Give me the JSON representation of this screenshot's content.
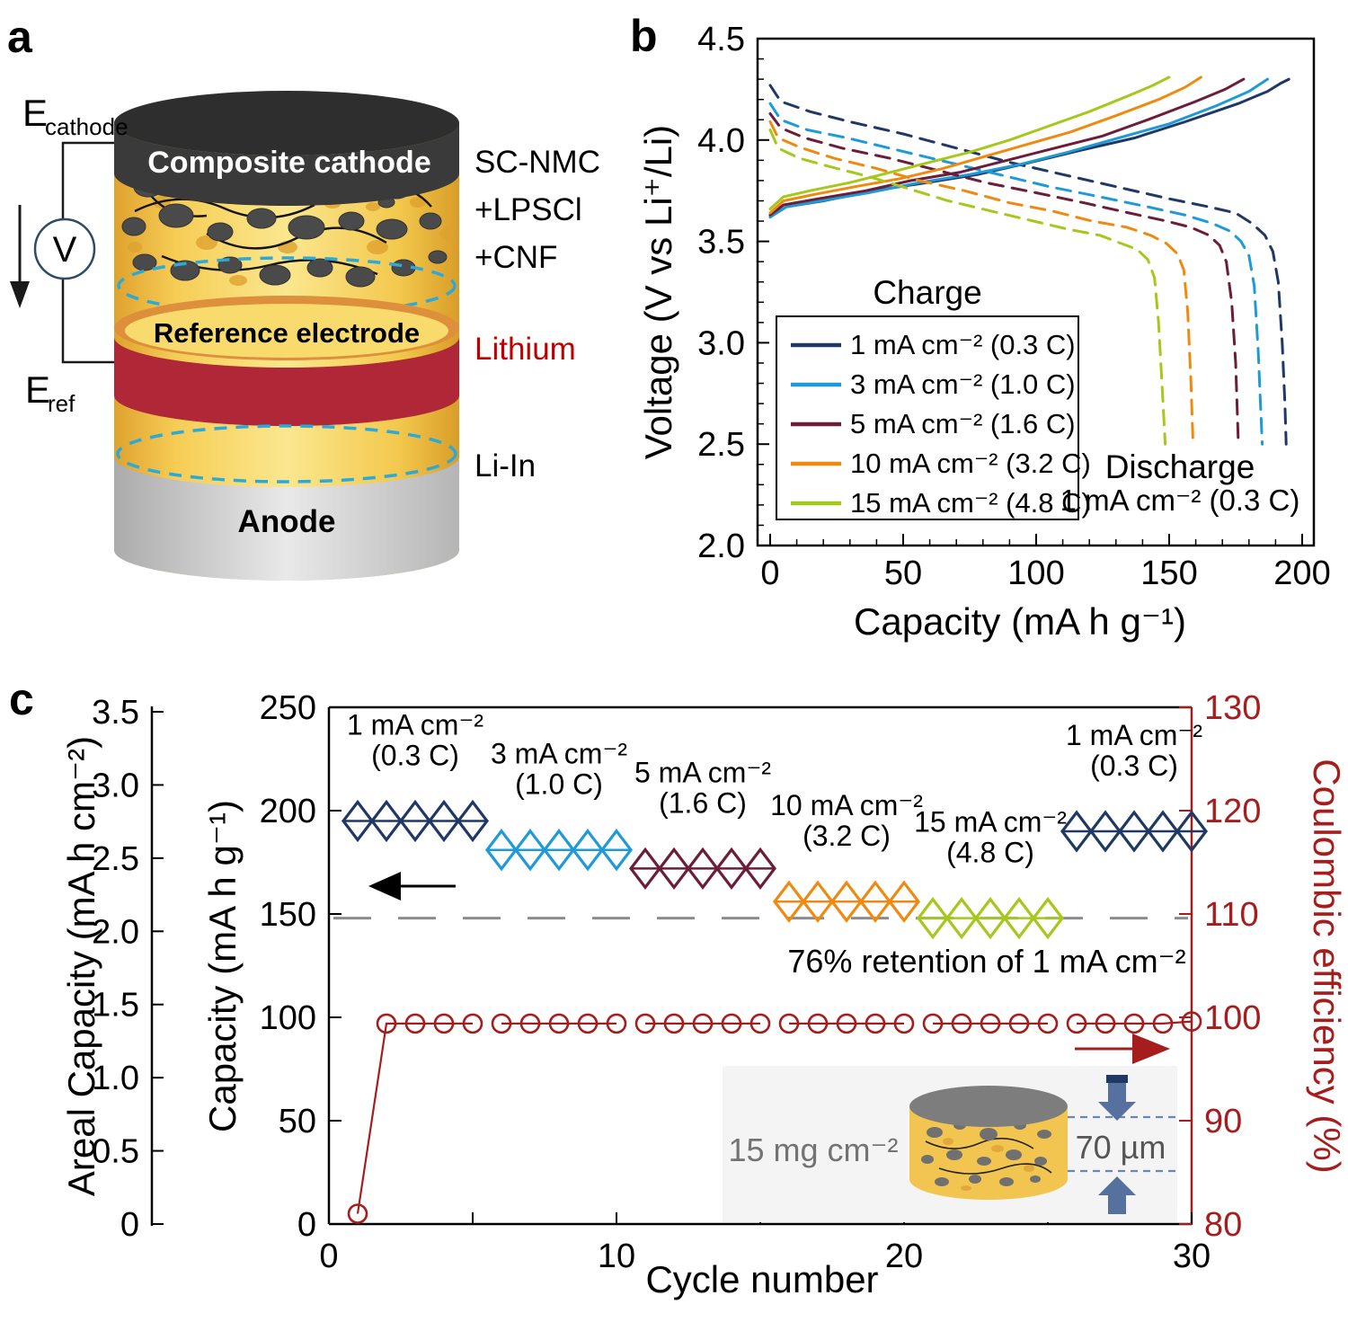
{
  "panels": {
    "a": "a",
    "b": "b",
    "c": "c"
  },
  "panel_a": {
    "voltmeter_label": "V",
    "e_symbol": "E",
    "e_cathode_sub": "cathode",
    "e_ref_sub": "ref",
    "cylinder": {
      "top_label": "Composite cathode",
      "middle_label": "Reference electrode",
      "bottom_label": "Anode"
    },
    "side_labels": {
      "cathode_line1": "SC-NMC",
      "cathode_line2": "+LPSCl",
      "cathode_line3": "+CNF",
      "reference": "Lithium",
      "anode": "Li-In"
    }
  },
  "chart_data": [
    {
      "id": "b",
      "type": "line",
      "xlabel": "Capacity (mA h g⁻¹)",
      "ylabel": "Voltage (V vs Li⁺/Li)",
      "xlim": [
        0,
        204
      ],
      "ylim": [
        2.0,
        4.5
      ],
      "xticks": [
        0,
        50,
        100,
        150,
        200
      ],
      "yticks": [
        2.0,
        2.5,
        3.0,
        3.5,
        4.0,
        4.5
      ],
      "grid": false,
      "legend_title": "Charge",
      "legend_position": "lower-left",
      "annotation_line1": "Discharge",
      "annotation_line2": "1 mA cm⁻² (0.3 C)",
      "series": [
        {
          "name": "1 mA cm⁻² (0.3 C)",
          "color": "#1f3864",
          "charge": [
            [
              0,
              3.62
            ],
            [
              6,
              3.67
            ],
            [
              20,
              3.7
            ],
            [
              39,
              3.75
            ],
            [
              59,
              3.79
            ],
            [
              78,
              3.83
            ],
            [
              98,
              3.89
            ],
            [
              117,
              3.95
            ],
            [
              137,
              4.01
            ],
            [
              156,
              4.09
            ],
            [
              176,
              4.18
            ],
            [
              187,
              4.24
            ],
            [
              192,
              4.28
            ],
            [
              195,
              4.3
            ]
          ],
          "discharge": [
            [
              0,
              4.27
            ],
            [
              4,
              4.19
            ],
            [
              15,
              4.14
            ],
            [
              30,
              4.09
            ],
            [
              50,
              4.03
            ],
            [
              70,
              3.96
            ],
            [
              90,
              3.89
            ],
            [
              110,
              3.83
            ],
            [
              130,
              3.77
            ],
            [
              150,
              3.71
            ],
            [
              165,
              3.67
            ],
            [
              175,
              3.64
            ],
            [
              181,
              3.59
            ],
            [
              186,
              3.53
            ],
            [
              189,
              3.45
            ],
            [
              191,
              3.3
            ],
            [
              192.5,
              3.0
            ],
            [
              193.5,
              2.7
            ],
            [
              194,
              2.5
            ]
          ]
        },
        {
          "name": "3 mA cm⁻² (1.0 C)",
          "color": "#1e9bd7",
          "charge": [
            [
              0,
              3.62
            ],
            [
              6,
              3.67
            ],
            [
              19,
              3.7
            ],
            [
              37,
              3.74
            ],
            [
              56,
              3.79
            ],
            [
              75,
              3.83
            ],
            [
              94,
              3.88
            ],
            [
              112,
              3.94
            ],
            [
              131,
              4.01
            ],
            [
              150,
              4.08
            ],
            [
              168,
              4.17
            ],
            [
              180,
              4.24
            ],
            [
              187,
              4.3
            ]
          ],
          "discharge": [
            [
              0,
              4.18
            ],
            [
              4,
              4.1
            ],
            [
              14,
              4.05
            ],
            [
              29,
              4.01
            ],
            [
              48,
              3.95
            ],
            [
              67,
              3.89
            ],
            [
              86,
              3.83
            ],
            [
              105,
              3.77
            ],
            [
              124,
              3.72
            ],
            [
              142,
              3.67
            ],
            [
              156,
              3.63
            ],
            [
              166,
              3.59
            ],
            [
              173,
              3.55
            ],
            [
              177,
              3.5
            ],
            [
              180,
              3.43
            ],
            [
              182,
              3.28
            ],
            [
              183.5,
              2.95
            ],
            [
              184.5,
              2.65
            ],
            [
              185,
              2.5
            ]
          ]
        },
        {
          "name": "5 mA cm⁻² (1.6 C)",
          "color": "#6b1d39",
          "charge": [
            [
              0,
              3.63
            ],
            [
              5,
              3.68
            ],
            [
              18,
              3.71
            ],
            [
              36,
              3.75
            ],
            [
              53,
              3.8
            ],
            [
              71,
              3.84
            ],
            [
              89,
              3.9
            ],
            [
              107,
              3.96
            ],
            [
              125,
              4.02
            ],
            [
              142,
              4.1
            ],
            [
              160,
              4.19
            ],
            [
              171,
              4.25
            ],
            [
              178,
              4.3
            ]
          ],
          "discharge": [
            [
              0,
              4.13
            ],
            [
              4,
              4.06
            ],
            [
              13,
              4.01
            ],
            [
              27,
              3.96
            ],
            [
              45,
              3.91
            ],
            [
              63,
              3.85
            ],
            [
              81,
              3.79
            ],
            [
              100,
              3.74
            ],
            [
              118,
              3.69
            ],
            [
              135,
              3.64
            ],
            [
              149,
              3.6
            ],
            [
              158,
              3.57
            ],
            [
              165,
              3.53
            ],
            [
              169,
              3.48
            ],
            [
              171.5,
              3.4
            ],
            [
              173.5,
              3.2
            ],
            [
              175,
              2.9
            ],
            [
              176,
              2.5
            ]
          ]
        },
        {
          "name": "10 mA cm⁻² (3.2 C)",
          "color": "#ef8a10",
          "charge": [
            [
              0,
              3.64
            ],
            [
              5,
              3.7
            ],
            [
              16,
              3.73
            ],
            [
              32,
              3.77
            ],
            [
              49,
              3.81
            ],
            [
              65,
              3.86
            ],
            [
              81,
              3.92
            ],
            [
              97,
              3.98
            ],
            [
              113,
              4.04
            ],
            [
              130,
              4.12
            ],
            [
              146,
              4.2
            ],
            [
              156,
              4.26
            ],
            [
              162,
              4.31
            ]
          ],
          "discharge": [
            [
              0,
              4.09
            ],
            [
              3,
              4.01
            ],
            [
              12,
              3.96
            ],
            [
              24,
              3.91
            ],
            [
              40,
              3.86
            ],
            [
              56,
              3.8
            ],
            [
              73,
              3.75
            ],
            [
              90,
              3.69
            ],
            [
              106,
              3.65
            ],
            [
              121,
              3.6
            ],
            [
              134,
              3.57
            ],
            [
              143,
              3.53
            ],
            [
              149,
              3.49
            ],
            [
              153,
              3.44
            ],
            [
              155.5,
              3.36
            ],
            [
              157,
              3.15
            ],
            [
              158.2,
              2.8
            ],
            [
              159,
              2.5
            ]
          ]
        },
        {
          "name": "15 mA cm⁻² (4.8 C)",
          "color": "#a6c81c",
          "charge": [
            [
              0,
              3.66
            ],
            [
              5,
              3.72
            ],
            [
              15,
              3.75
            ],
            [
              30,
              3.79
            ],
            [
              45,
              3.84
            ],
            [
              60,
              3.89
            ],
            [
              75,
              3.94
            ],
            [
              90,
              4.0
            ],
            [
              105,
              4.07
            ],
            [
              120,
              4.14
            ],
            [
              135,
              4.22
            ],
            [
              144,
              4.27
            ],
            [
              150,
              4.31
            ]
          ],
          "discharge": [
            [
              0,
              4.05
            ],
            [
              3,
              3.96
            ],
            [
              11,
              3.91
            ],
            [
              22,
              3.87
            ],
            [
              37,
              3.82
            ],
            [
              52,
              3.76
            ],
            [
              67,
              3.7
            ],
            [
              83,
              3.65
            ],
            [
              99,
              3.6
            ],
            [
              112,
              3.56
            ],
            [
              124,
              3.53
            ],
            [
              132,
              3.49
            ],
            [
              138,
              3.46
            ],
            [
              142,
              3.41
            ],
            [
              144.5,
              3.32
            ],
            [
              146,
              3.1
            ],
            [
              147.5,
              2.75
            ],
            [
              148.5,
              2.5
            ]
          ]
        }
      ]
    },
    {
      "id": "c",
      "type": "scatter-line",
      "xlabel": "Cycle number",
      "ylabel_areal": "Areal Capacity (mA h cm⁻²)",
      "ylabel_left": "Capacity (mA h g⁻¹)",
      "ylabel_right": "Coulombic efficiency (%)",
      "xlim": [
        0,
        30
      ],
      "ylim_left": [
        0,
        250
      ],
      "ylim_areal": [
        0,
        3.5
      ],
      "ylim_right": [
        80,
        130
      ],
      "xticks": [
        0,
        10,
        20,
        30
      ],
      "xticks_minor": [
        5,
        15,
        25
      ],
      "yticks_left": [
        0,
        50,
        100,
        150,
        200,
        250
      ],
      "yticks_areal": [
        0,
        0.5,
        1.0,
        1.5,
        2.0,
        2.5,
        3.0,
        3.5
      ],
      "yticks_right": [
        80,
        90,
        100,
        110,
        120,
        130
      ],
      "retention_line": {
        "value": 148,
        "label": "76% retention of 1 mA cm⁻²",
        "color": "#8c8c8c"
      },
      "capacity_groups": [
        {
          "label_line1": "1 mA cm⁻²",
          "label_line2": "(0.3 C)",
          "color": "#1f3864",
          "cycles": [
            1,
            2,
            3,
            4,
            5
          ],
          "capacity": 195
        },
        {
          "label_line1": "3 mA cm⁻²",
          "label_line2": "(1.0 C)",
          "color": "#1e9bd7",
          "cycles": [
            6,
            7,
            8,
            9,
            10
          ],
          "capacity": 181
        },
        {
          "label_line1": "5 mA cm⁻²",
          "label_line2": "(1.6 C)",
          "color": "#6b1d39",
          "cycles": [
            11,
            12,
            13,
            14,
            15
          ],
          "capacity": 172
        },
        {
          "label_line1": "10 mA cm⁻²",
          "label_line2": "(3.2 C)",
          "color": "#ef8a10",
          "cycles": [
            16,
            17,
            18,
            19,
            20
          ],
          "capacity": 156
        },
        {
          "label_line1": "15 mA cm⁻²",
          "label_line2": "(4.8 C)",
          "color": "#a6c81c",
          "cycles": [
            21,
            22,
            23,
            24,
            25
          ],
          "capacity": 148
        },
        {
          "label_line1": "1 mA cm⁻²",
          "label_line2": "(0.3 C)",
          "color": "#1f3864",
          "cycles": [
            26,
            27,
            28,
            29,
            30
          ],
          "capacity": 190
        }
      ],
      "coulombic_efficiency": {
        "color": "#a51d1d",
        "groups": [
          {
            "cycles": [
              1,
              2,
              3,
              4,
              5
            ],
            "values": [
              81,
              99.4,
              99.4,
              99.4,
              99.4
            ]
          },
          {
            "cycles": [
              6,
              7,
              8,
              9,
              10
            ],
            "values": [
              99.4,
              99.4,
              99.4,
              99.4,
              99.4
            ]
          },
          {
            "cycles": [
              11,
              12,
              13,
              14,
              15
            ],
            "values": [
              99.4,
              99.4,
              99.4,
              99.4,
              99.4
            ]
          },
          {
            "cycles": [
              16,
              17,
              18,
              19,
              20
            ],
            "values": [
              99.4,
              99.4,
              99.4,
              99.4,
              99.4
            ]
          },
          {
            "cycles": [
              21,
              22,
              23,
              24,
              25
            ],
            "values": [
              99.4,
              99.4,
              99.4,
              99.4,
              99.4
            ]
          },
          {
            "cycles": [
              26,
              27,
              28,
              29,
              30
            ],
            "values": [
              99.4,
              99.4,
              99.4,
              99.4,
              99.6
            ]
          }
        ]
      },
      "inset": {
        "mass_loading": "15 mg cm⁻²",
        "thickness": "70 µm"
      }
    }
  ]
}
